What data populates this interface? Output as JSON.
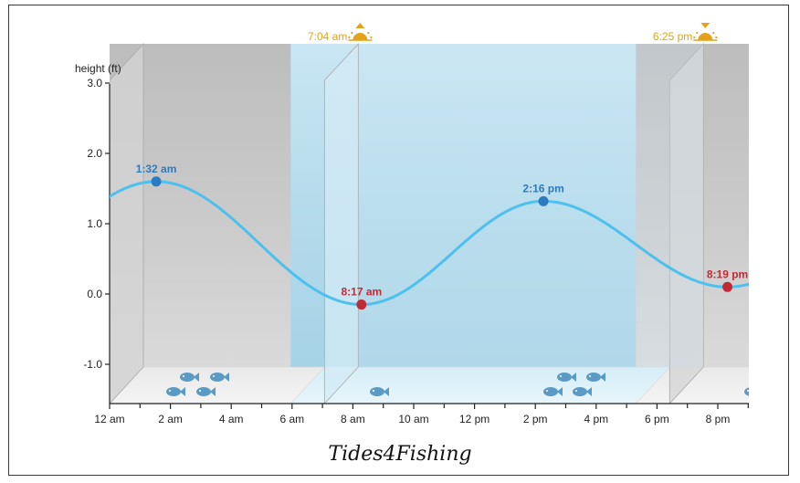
{
  "chart_data": {
    "type": "line",
    "title": "",
    "ylabel": "height (ft)",
    "ylim": [
      -1.55,
      3.0
    ],
    "xlim_hours": [
      0,
      21
    ],
    "y_ticks": [
      "3.0",
      "2.0",
      "1.0",
      "0.0",
      "-1.0"
    ],
    "y_tick_values": [
      3.0,
      2.0,
      1.0,
      0.0,
      -1.0
    ],
    "x_ticks": [
      "12 am",
      "2 am",
      "4 am",
      "6 am",
      "8 am",
      "10 am",
      "12 pm",
      "2 pm",
      "4 pm",
      "6 pm",
      "8 pm"
    ],
    "extremes": [
      {
        "label": "1:32 am",
        "hour": 1.533,
        "height": 1.6,
        "kind": "high",
        "color": "#2a7bbf"
      },
      {
        "label": "8:17 am",
        "hour": 8.283,
        "height": -0.15,
        "kind": "low",
        "color": "#c42a35"
      },
      {
        "label": "2:16 pm",
        "hour": 14.267,
        "height": 1.32,
        "kind": "high",
        "color": "#2a7bbf"
      },
      {
        "label": "8:19 pm",
        "hour": 20.317,
        "height": 0.1,
        "kind": "low",
        "color": "#c42a35"
      }
    ],
    "sunrise": {
      "label": "7:04 am",
      "hour": 7.067
    },
    "sunset": {
      "label": "6:25 pm",
      "hour": 18.417
    },
    "series": [
      {
        "values_at_extremes": [
          1.6,
          -0.15,
          1.32,
          0.1
        ],
        "color": "#4cc0ee"
      }
    ],
    "grid": false,
    "legend": "none"
  },
  "brand": "Tides4Fishing",
  "colors": {
    "curve": "#4cc0ee",
    "high": "#2a7bbf",
    "low": "#c42a35",
    "sun": "#e3a21a",
    "night": "#c9c9c9",
    "day": "#b0d9ea",
    "fish": "#5a9ac4"
  }
}
